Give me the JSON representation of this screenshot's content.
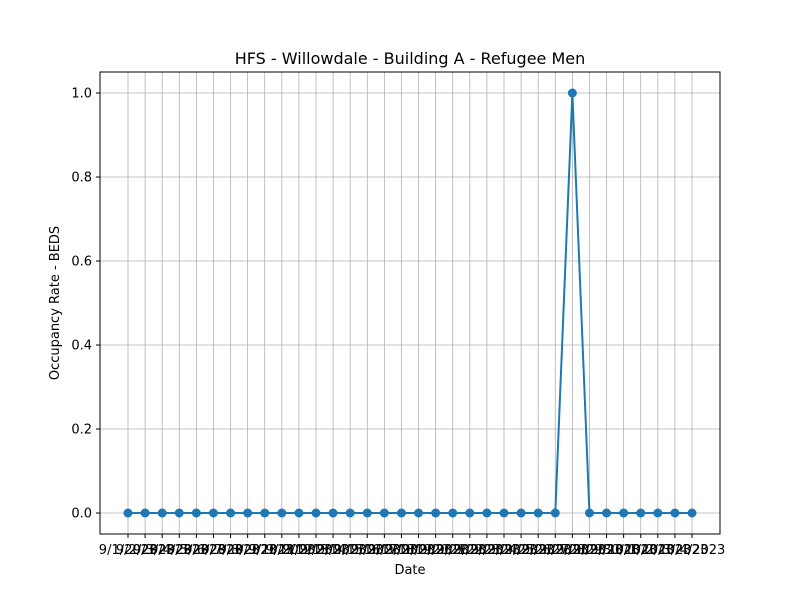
{
  "chart_data": {
    "type": "line",
    "title": "HFS - Willowdale - Building A - Refugee Men",
    "xlabel": "Date",
    "ylabel": "Occupancy Rate - BEDS",
    "x": [
      "9/1/2023",
      "9/2/2023",
      "9/3/2023",
      "9/4/2023",
      "9/5/2023",
      "9/6/2023",
      "9/7/2023",
      "9/8/2023",
      "9/9/2023",
      "9/10/2023",
      "9/11/2023",
      "9/12/2023",
      "9/13/2023",
      "9/14/2023",
      "9/15/2023",
      "9/16/2023",
      "9/17/2023",
      "9/18/2023",
      "9/19/2023",
      "9/20/2023",
      "9/21/2023",
      "9/22/2023",
      "9/23/2023",
      "9/24/2023",
      "9/25/2023",
      "9/26/2023",
      "9/27/2023",
      "9/28/2023",
      "9/29/2023",
      "9/30/2023",
      "10/1/2023",
      "10/2/2023",
      "10/3/2023",
      "10/4/2023"
    ],
    "series": [
      {
        "values": [
          0,
          0,
          0,
          0,
          0,
          0,
          0,
          0,
          0,
          0,
          0,
          0,
          0,
          0,
          0,
          0,
          0,
          0,
          0,
          0,
          0,
          0,
          0,
          0,
          0,
          0,
          1,
          0,
          0,
          0,
          0,
          0,
          0,
          0
        ],
        "color": "#1f77b4"
      }
    ],
    "ylim": [
      -0.05,
      1.05
    ],
    "yticks": [
      "0.0",
      "0.2",
      "0.4",
      "0.6",
      "0.8",
      "1.0"
    ],
    "grid": true
  }
}
